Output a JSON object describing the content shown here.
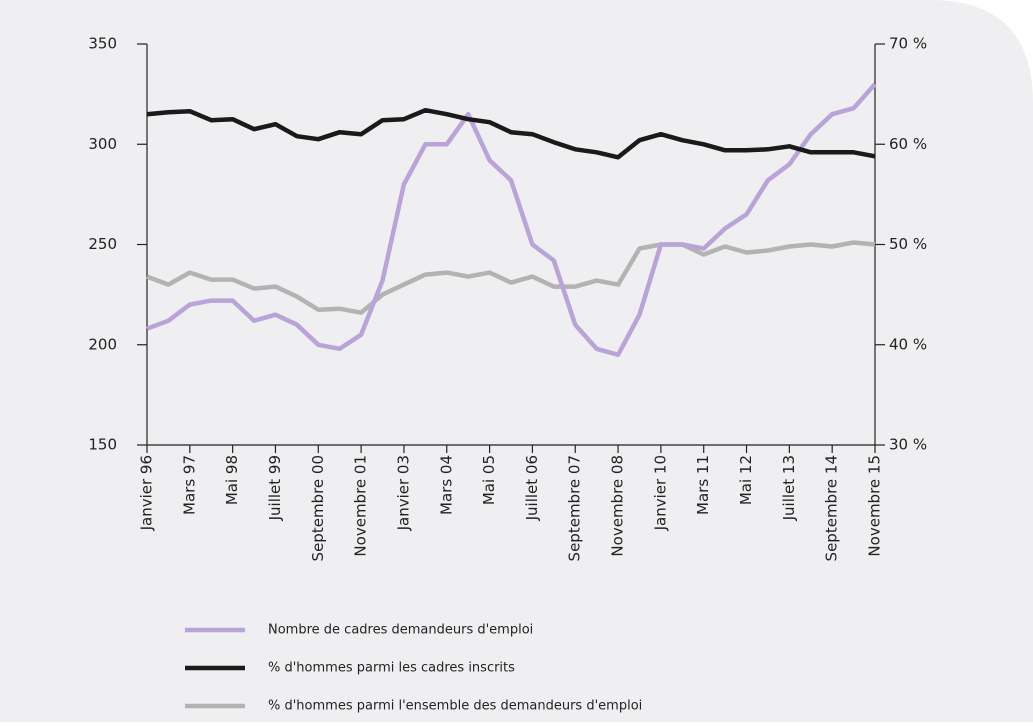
{
  "chart_data": {
    "type": "line",
    "categories": [
      "Janvier 96",
      null,
      "Mars 97",
      null,
      "Mai 98",
      null,
      "Juillet 99",
      null,
      "Septembre 00",
      null,
      "Novembre 01",
      null,
      "Janvier 03",
      null,
      "Mars 04",
      null,
      "Mai 05",
      null,
      "Juillet 06",
      null,
      "Septembre 07",
      null,
      "Novembre 08",
      null,
      "Janvier 10",
      null,
      "Mars 11",
      null,
      "Mai 12",
      null,
      "Juillet 13",
      null,
      "Septembre 14",
      null,
      "Novembre 15"
    ],
    "series": [
      {
        "name": "Nombre de cadres demandeurs d'emploi",
        "color": "#b9a3d8",
        "axis": "y",
        "values": [
          208,
          212,
          220,
          222,
          222,
          212,
          215,
          210,
          200,
          198,
          205,
          232,
          280,
          300,
          300,
          315,
          292,
          282,
          250,
          242,
          210,
          198,
          195,
          215,
          250,
          250,
          248,
          258,
          265,
          282,
          290,
          305,
          315,
          318,
          330
        ]
      },
      {
        "name": "% d'hommes parmi les cadres inscrits",
        "color": "#1a1a1a",
        "axis": "y2",
        "values": [
          63,
          63.2,
          63.3,
          62.4,
          62.5,
          61.5,
          62,
          60.8,
          60.5,
          61.2,
          61,
          62.4,
          62.5,
          63.4,
          63,
          62.5,
          62.2,
          61.2,
          61,
          60.2,
          59.5,
          59.2,
          58.7,
          60.4,
          61,
          60.4,
          60,
          59.4,
          59.4,
          59.5,
          59.8,
          59.2,
          59.2,
          59.2,
          58.8
        ]
      },
      {
        "name": "% d'hommes parmi l'ensemble des demandeurs d'emploi",
        "color": "#b3b3b3",
        "axis": "y2",
        "values": [
          46.8,
          46,
          47.2,
          46.5,
          46.5,
          45.6,
          45.8,
          44.8,
          43.5,
          43.6,
          43.2,
          45,
          46,
          47,
          47.2,
          46.8,
          47.2,
          46.2,
          46.8,
          45.8,
          45.8,
          46.4,
          46,
          49.6,
          50,
          50,
          49,
          49.8,
          49.2,
          49.4,
          49.8,
          50,
          49.8,
          50.2,
          50
        ]
      }
    ],
    "ylim": [
      150,
      350
    ],
    "yticks": [
      150,
      200,
      250,
      300,
      350
    ],
    "y2lim": [
      30,
      70
    ],
    "y2ticks": [
      {
        "value": 30,
        "label": "30 %"
      },
      {
        "value": 40,
        "label": "40 %"
      },
      {
        "value": 50,
        "label": "50 %"
      },
      {
        "value": 60,
        "label": "60 %"
      },
      {
        "value": 70,
        "label": "70 %"
      }
    ],
    "legend": "bottom"
  }
}
